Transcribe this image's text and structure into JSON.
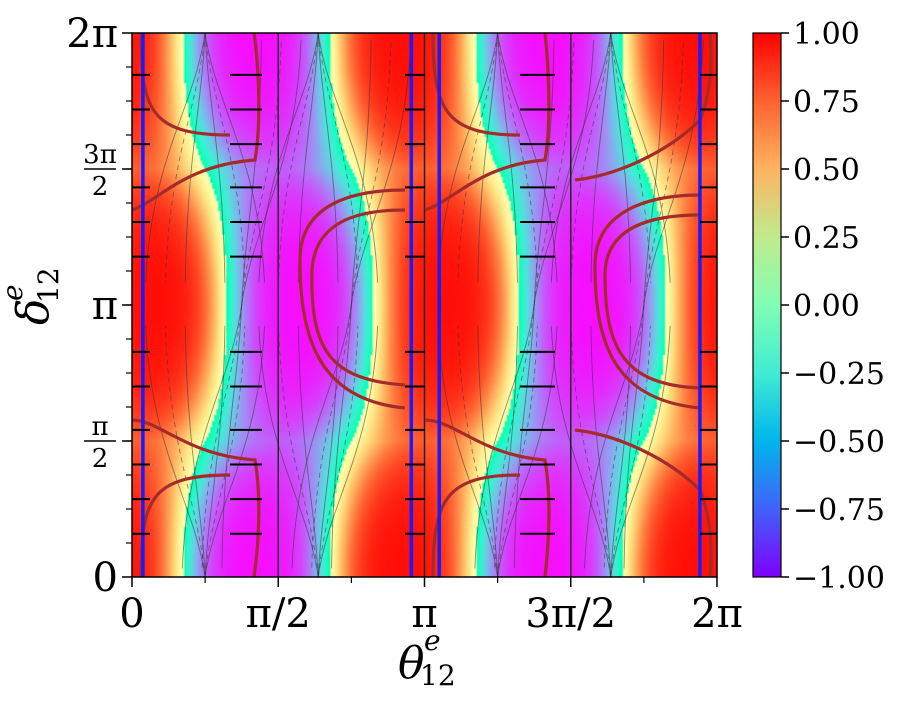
{
  "chart_data": {
    "type": "heatmap",
    "title": "",
    "xlabel": {
      "symbol": "θ",
      "superscript": "e",
      "subscript": "12"
    },
    "ylabel": {
      "symbol": "δ",
      "superscript": "e",
      "subscript": "12"
    },
    "xlim": [
      0,
      6.2832
    ],
    "ylim": [
      0,
      6.2832
    ],
    "x_ticks": [
      {
        "value": 0,
        "label": "0"
      },
      {
        "value": 1.5708,
        "label": "π/2"
      },
      {
        "value": 3.1416,
        "label": "π"
      },
      {
        "value": 4.7124,
        "label": "3π/2"
      },
      {
        "value": 6.2832,
        "label": "2π"
      }
    ],
    "y_ticks": [
      {
        "value": 0,
        "label": "0"
      },
      {
        "value": 1.5708,
        "label": "π/2",
        "num": "π",
        "den": "2"
      },
      {
        "value": 3.1416,
        "label": "π"
      },
      {
        "value": 4.7124,
        "label": "3π/2",
        "num": "3π",
        "den": "2"
      },
      {
        "value": 6.2832,
        "label": "2π"
      }
    ],
    "colorbar": {
      "colormap": "rainbow",
      "range": [
        -1.0,
        1.0
      ],
      "ticks": [
        {
          "value": 1.0,
          "label": "1.00"
        },
        {
          "value": 0.75,
          "label": "0.75"
        },
        {
          "value": 0.5,
          "label": "0.50"
        },
        {
          "value": 0.25,
          "label": "0.25"
        },
        {
          "value": 0.0,
          "label": "0.00"
        },
        {
          "value": -0.25,
          "label": "−0.25"
        },
        {
          "value": -0.5,
          "label": "−0.50"
        },
        {
          "value": -0.75,
          "label": "−0.75"
        },
        {
          "value": -1.0,
          "label": "−1.00"
        }
      ]
    },
    "field": {
      "description": "approximate scalar field in [-1,1]; red maxima at (0,π),(π,π),(2π,π) and corners; violet regions around (π/2,π),(3π/2,π); saddle-like foci at x=3π/8+kπ/2...",
      "focus_points": [
        {
          "x": 0.785,
          "y": 6.2832
        },
        {
          "x": 1.1781,
          "y": 3.1416
        },
        {
          "x": 0.785,
          "y": 0
        },
        {
          "x": 2.0,
          "y": 6.2832
        },
        {
          "x": 2.3562,
          "y": 3.1416
        },
        {
          "x": 2.0,
          "y": 0
        },
        {
          "x": 3.927,
          "y": 6.2832
        },
        {
          "x": 4.3197,
          "y": 3.1416
        },
        {
          "x": 3.927,
          "y": 0
        },
        {
          "x": 5.142,
          "y": 6.2832
        },
        {
          "x": 5.4978,
          "y": 3.1416
        },
        {
          "x": 5.142,
          "y": 0
        }
      ]
    },
    "vertical_lines": {
      "color": "#1a1aff",
      "x": [
        0.117,
        3.0,
        3.3,
        6.1
      ]
    },
    "section_dividers": {
      "color": "#222222",
      "x": [
        1.5708,
        3.1416,
        4.7124
      ]
    },
    "boundary_curves": {
      "color": "#a52a2a",
      "description": "dark-red contour curves outlining allowed regions"
    }
  }
}
